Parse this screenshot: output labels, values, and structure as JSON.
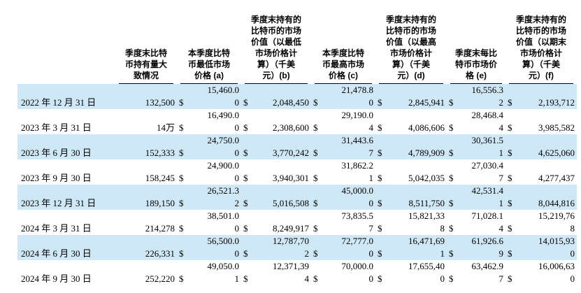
{
  "table": {
    "currency_symbol": "$",
    "highlight_color": "#cfe8f7",
    "text_color": "#000000",
    "columns": [
      {
        "key": "date",
        "label": "",
        "label_lines": []
      },
      {
        "key": "holdings",
        "label": "季度末比特币持有量大致情况",
        "label_lines": [
          "季度末比特",
          "币持有量大",
          "致情况"
        ]
      },
      {
        "key": "a",
        "label": "本季度比特币最低市场价格 (a)",
        "label_lines": [
          "本季度比特",
          "币最低市场",
          "价格 (a)"
        ]
      },
      {
        "key": "b",
        "label": "季度末持有的比特币的市场价值（以最低市场价格计算）（千美元）(b)",
        "label_lines": [
          "季度末持有的",
          "比特币的市场",
          "价值（以最低",
          "市场价格计",
          "算）（千美",
          "元）(b)"
        ]
      },
      {
        "key": "c",
        "label": "本季度比特币最高市场价格 (c)",
        "label_lines": [
          "本季度比特",
          "币最高市场",
          "价格 (c)"
        ]
      },
      {
        "key": "d",
        "label": "季度末持有的比特币的市场价值（以最高市场价格计算）（千美元）(d)",
        "label_lines": [
          "季度末持有的",
          "比特币的市场",
          "价值（以最高",
          "市场价格计",
          "算）（千美",
          "元）(d)"
        ]
      },
      {
        "key": "e",
        "label": "季度末每比特币市场价格 (e)",
        "label_lines": [
          "季度末每比",
          "特币市场价",
          "格 (e)"
        ]
      },
      {
        "key": "f",
        "label": "季度末持有的比特币的市场价值（以期末市场价格计算）（千美元）(f)",
        "label_lines": [
          "季度末持有的",
          "比特币的市场",
          "价值（以期末",
          "市场价格计",
          "算）（千美",
          "元）(f)"
        ]
      }
    ],
    "rows": [
      {
        "date": "2022 年 12 月 31 日",
        "holdings": "132,500",
        "highlight": true,
        "cells": {
          "a": {
            "line1": "15,460.0",
            "line2": "0"
          },
          "b": {
            "line1": "",
            "line2": "2,048,450"
          },
          "c": {
            "line1": "21,478.8",
            "line2": "0"
          },
          "d": {
            "line1": "",
            "line2": "2,845,941"
          },
          "e": {
            "line1": "16,556.3",
            "line2": "2"
          },
          "f": {
            "line1": "",
            "line2": "2,193,712"
          }
        }
      },
      {
        "date": "2023 年 3 月 31 日",
        "holdings": "14万",
        "highlight": false,
        "cells": {
          "a": {
            "line1": "16,490.0",
            "line2": "0"
          },
          "b": {
            "line1": "",
            "line2": "2,308,600"
          },
          "c": {
            "line1": "29,190.0",
            "line2": "4"
          },
          "d": {
            "line1": "",
            "line2": "4,086,606"
          },
          "e": {
            "line1": "28,468.4",
            "line2": "4"
          },
          "f": {
            "line1": "",
            "line2": "3,985,582"
          }
        }
      },
      {
        "date": "2023 年 6 月 30 日",
        "holdings": "152,333",
        "highlight": true,
        "cells": {
          "a": {
            "line1": "24,750.0",
            "line2": "0"
          },
          "b": {
            "line1": "",
            "line2": "3,770,242"
          },
          "c": {
            "line1": "31,443.6",
            "line2": "7"
          },
          "d": {
            "line1": "",
            "line2": "4,789,909"
          },
          "e": {
            "line1": "30,361.5",
            "line2": "1"
          },
          "f": {
            "line1": "",
            "line2": "4,625,060"
          }
        }
      },
      {
        "date": "2023 年 9 月 30 日",
        "holdings": "158,245",
        "highlight": false,
        "cells": {
          "a": {
            "line1": "24,900.0",
            "line2": "0"
          },
          "b": {
            "line1": "",
            "line2": "3,940,301"
          },
          "c": {
            "line1": "31,862.2",
            "line2": "1"
          },
          "d": {
            "line1": "",
            "line2": "5,042,035"
          },
          "e": {
            "line1": "27,030.4",
            "line2": "7"
          },
          "f": {
            "line1": "",
            "line2": "4,277,437"
          }
        }
      },
      {
        "date": "2023 年 12 月 31 日",
        "holdings": "189,150",
        "highlight": true,
        "cells": {
          "a": {
            "line1": "26,521.3",
            "line2": "2"
          },
          "b": {
            "line1": "",
            "line2": "5,016,508"
          },
          "c": {
            "line1": "45,000.0",
            "line2": "0"
          },
          "d": {
            "line1": "",
            "line2": "8,511,750"
          },
          "e": {
            "line1": "42,531.4",
            "line2": "1"
          },
          "f": {
            "line1": "",
            "line2": "8,044,816"
          }
        }
      },
      {
        "date": "2024 年 3 月 31 日",
        "holdings": "214,278",
        "highlight": false,
        "cells": {
          "a": {
            "line1": "38,501.0",
            "line2": "0"
          },
          "b": {
            "line1": "",
            "line2": "8,249,917"
          },
          "c": {
            "line1": "73,835.5",
            "line2": "7"
          },
          "d": {
            "line1": "15,821,33",
            "line2": "8"
          },
          "e": {
            "line1": "71,028.1",
            "line2": "4"
          },
          "f": {
            "line1": "15,219,76",
            "line2": "8"
          }
        }
      },
      {
        "date": "2024 年 6 月 30 日",
        "holdings": "226,331",
        "highlight": true,
        "cells": {
          "a": {
            "line1": "56,500.0",
            "line2": "0"
          },
          "b": {
            "line1": "12,787,70",
            "line2": "2"
          },
          "c": {
            "line1": "72,777.0",
            "line2": "0"
          },
          "d": {
            "line1": "16,471,69",
            "line2": "1"
          },
          "e": {
            "line1": "61,926.6",
            "line2": "9"
          },
          "f": {
            "line1": "14,015,93",
            "line2": "0"
          }
        }
      },
      {
        "date": "2024 年 9 月 30 日",
        "holdings": "252,220",
        "highlight": false,
        "cells": {
          "a": {
            "line1": "49,050.0",
            "line2": "1"
          },
          "b": {
            "line1": "12,371,39",
            "line2": "4"
          },
          "c": {
            "line1": "70,000.0",
            "line2": "0"
          },
          "d": {
            "line1": "17,655,40",
            "line2": "0"
          },
          "e": {
            "line1": "63,462.9",
            "line2": "7"
          },
          "f": {
            "line1": "16,006,63",
            "line2": "0"
          }
        }
      }
    ]
  }
}
